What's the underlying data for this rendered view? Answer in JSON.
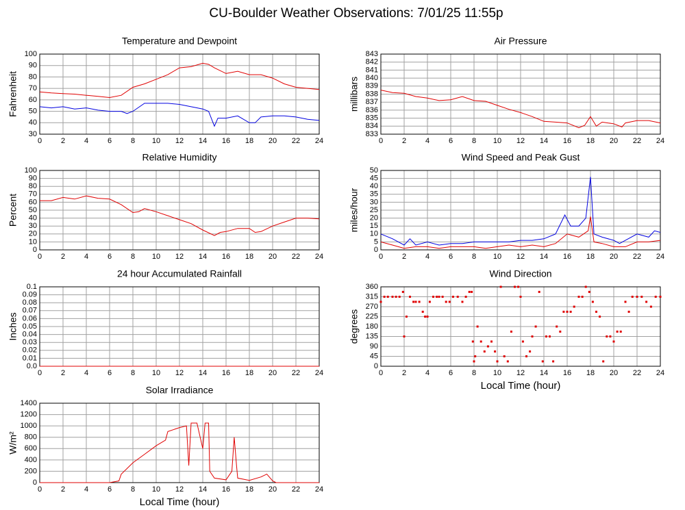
{
  "title": "CU-Boulder Weather Observations: 7/01/25 11:55p",
  "chart_data": [
    {
      "type": "line",
      "title": "Temperature and Dewpoint",
      "ylabel": "Fahrenheit",
      "xlim": [
        0,
        24
      ],
      "xticks": [
        0,
        2,
        4,
        6,
        8,
        10,
        12,
        14,
        16,
        18,
        20,
        22,
        24
      ],
      "ylim": [
        30,
        100
      ],
      "yticks": [
        30,
        40,
        50,
        60,
        70,
        80,
        90,
        100
      ],
      "grid": true,
      "series": [
        {
          "color": "#e00000",
          "x": [
            0,
            1,
            2,
            3,
            4,
            5,
            6,
            7,
            8,
            9,
            10,
            11,
            12,
            13,
            14,
            14.5,
            15,
            16,
            17,
            18,
            19,
            20,
            21,
            22,
            23,
            24
          ],
          "values": [
            67,
            66,
            65.5,
            65,
            64,
            63,
            62,
            64,
            71,
            74,
            78,
            82,
            88,
            89,
            92,
            91,
            88,
            83,
            85,
            82,
            82,
            79,
            74,
            71,
            70,
            69
          ]
        },
        {
          "color": "#0000e0",
          "x": [
            0,
            1,
            2,
            3,
            4,
            5,
            6,
            7,
            7.5,
            8,
            9,
            10,
            11,
            12,
            13,
            14,
            14.5,
            15,
            15.3,
            16,
            17,
            18,
            18.5,
            19,
            20,
            21,
            22,
            23,
            24
          ],
          "values": [
            54,
            53,
            54,
            52,
            53,
            51,
            50,
            50,
            48,
            50,
            57,
            57,
            57,
            56,
            54,
            52,
            50,
            37,
            44,
            44,
            46,
            40,
            40,
            45,
            46,
            46,
            45,
            43,
            42
          ]
        }
      ]
    },
    {
      "type": "line",
      "title": "Air Pressure",
      "ylabel": "millibars",
      "xlim": [
        0,
        24
      ],
      "xticks": [
        0,
        2,
        4,
        6,
        8,
        10,
        12,
        14,
        16,
        18,
        20,
        22,
        24
      ],
      "ylim": [
        833,
        843
      ],
      "yticks": [
        833,
        834,
        835,
        836,
        837,
        838,
        839,
        840,
        841,
        842,
        843
      ],
      "grid": true,
      "series": [
        {
          "color": "#e00000",
          "x": [
            0,
            1,
            2,
            3,
            4,
            5,
            6,
            7,
            8,
            9,
            10,
            11,
            12,
            13,
            14,
            15,
            16,
            17,
            17.5,
            18,
            18.5,
            19,
            20,
            20.7,
            21,
            22,
            23,
            24
          ],
          "values": [
            838.5,
            838.2,
            838.1,
            837.7,
            837.5,
            837.2,
            837.3,
            837.7,
            837.2,
            837.1,
            836.6,
            836.1,
            835.7,
            835.2,
            834.6,
            834.5,
            834.4,
            833.8,
            834.1,
            835.2,
            834,
            834.5,
            834.3,
            833.9,
            834.4,
            834.7,
            834.7,
            834.4
          ]
        }
      ]
    },
    {
      "type": "line",
      "title": "Relative Humidity",
      "ylabel": "Percent",
      "xlim": [
        0,
        24
      ],
      "xticks": [
        0,
        2,
        4,
        6,
        8,
        10,
        12,
        14,
        16,
        18,
        20,
        22,
        24
      ],
      "ylim": [
        0,
        100
      ],
      "yticks": [
        0,
        10,
        20,
        30,
        40,
        50,
        60,
        70,
        80,
        90,
        100
      ],
      "grid": true,
      "series": [
        {
          "color": "#e00000",
          "x": [
            0,
            1,
            2,
            3,
            4,
            5,
            6,
            7,
            8,
            8.5,
            9,
            10,
            11,
            12,
            13,
            14,
            15,
            15.5,
            16,
            17,
            18,
            18.5,
            19,
            20,
            21,
            22,
            23,
            24
          ],
          "values": [
            62,
            62,
            66,
            64,
            68,
            65,
            64,
            57,
            47,
            48,
            52,
            48,
            43,
            38,
            33,
            25,
            18,
            22,
            23,
            27,
            27,
            22,
            23,
            30,
            35,
            40,
            40,
            39
          ]
        }
      ]
    },
    {
      "type": "line",
      "title": "Wind Speed and Peak Gust",
      "ylabel": "miles/hour",
      "xlim": [
        0,
        24
      ],
      "xticks": [
        0,
        2,
        4,
        6,
        8,
        10,
        12,
        14,
        16,
        18,
        20,
        22,
        24
      ],
      "ylim": [
        0,
        50
      ],
      "yticks": [
        0,
        5,
        10,
        15,
        20,
        25,
        30,
        35,
        40,
        45,
        50
      ],
      "grid": true,
      "series": [
        {
          "color": "#0000e0",
          "x": [
            0,
            1,
            2,
            2.5,
            3,
            4,
            5,
            6,
            7,
            8,
            9,
            10,
            11,
            12,
            13,
            14,
            15,
            15.8,
            16.3,
            17,
            17.6,
            18,
            18.3,
            19,
            20,
            20.5,
            21,
            22,
            23,
            23.5,
            24
          ],
          "values": [
            10,
            7,
            3,
            7,
            3,
            5,
            3,
            4,
            4,
            5,
            5,
            5,
            5,
            6,
            6,
            7,
            10,
            22,
            15,
            15,
            20,
            46,
            10,
            8,
            6,
            4,
            6,
            10,
            8,
            12,
            11
          ]
        },
        {
          "color": "#e00000",
          "x": [
            0,
            1,
            2,
            3,
            4,
            5,
            6,
            7,
            8,
            9,
            10,
            11,
            12,
            13,
            14,
            15,
            16,
            17,
            17.8,
            18,
            18.3,
            19,
            20,
            21,
            22,
            23,
            24
          ],
          "values": [
            5,
            3,
            1,
            2,
            2,
            1,
            2,
            2,
            2,
            1,
            2,
            3,
            2,
            3,
            2,
            4,
            10,
            8,
            12,
            21,
            5,
            4,
            2,
            2,
            5,
            5,
            6
          ]
        }
      ]
    },
    {
      "type": "line",
      "title": "24 hour Accumulated Rainfall",
      "ylabel": "Inches",
      "xlim": [
        0,
        24
      ],
      "xticks": [
        0,
        2,
        4,
        6,
        8,
        10,
        12,
        14,
        16,
        18,
        20,
        22,
        24
      ],
      "ylim": [
        0,
        0.1
      ],
      "yticks": [
        {
          "value": 0,
          "label": "0.0"
        },
        0.01,
        0.02,
        0.03,
        0.04,
        0.05,
        0.06,
        0.07,
        0.08,
        0.09,
        0.1
      ],
      "grid": true,
      "series": [
        {
          "color": "#e00000",
          "x": [
            0,
            24
          ],
          "values": [
            0,
            0
          ]
        }
      ]
    },
    {
      "type": "scatter",
      "title": "Wind Direction",
      "ylabel": "degrees",
      "xlabel": "Local Time (hour)",
      "xlim": [
        0,
        24
      ],
      "xticks": [
        0,
        2,
        4,
        6,
        8,
        10,
        12,
        14,
        16,
        18,
        20,
        22,
        24
      ],
      "ylim": [
        0,
        360
      ],
      "yticks": [
        0,
        45,
        90,
        135,
        180,
        225,
        270,
        315,
        360
      ],
      "grid": true,
      "series": [
        {
          "color": "#e00000",
          "x": [
            0,
            0.3,
            0.6,
            1,
            1.3,
            1.6,
            1.9,
            2,
            2.2,
            2.5,
            2.8,
            3,
            3.3,
            3.6,
            3.8,
            4,
            4.2,
            4.5,
            4.8,
            5,
            5.3,
            5.6,
            5.9,
            6.2,
            6.6,
            7,
            7.3,
            7.6,
            7.8,
            7.9,
            8,
            8.1,
            8.3,
            8.6,
            8.9,
            9.2,
            9.5,
            9.8,
            10,
            10.3,
            10.6,
            10.9,
            11.2,
            11.5,
            11.8,
            12,
            12.2,
            12.5,
            12.8,
            13,
            13.3,
            13.6,
            13.9,
            14.2,
            14.5,
            14.8,
            15.1,
            15.4,
            15.7,
            16,
            16.3,
            16.6,
            17,
            17.3,
            17.6,
            17.9,
            18.2,
            18.5,
            18.8,
            19.1,
            19.4,
            19.7,
            20,
            20.3,
            20.6,
            21,
            21.3,
            21.6,
            22,
            22.4,
            22.8,
            23.2,
            23.6,
            24
          ],
          "values": [
            292,
            315,
            315,
            315,
            315,
            315,
            337,
            135,
            225,
            315,
            292,
            292,
            292,
            247,
            225,
            225,
            292,
            315,
            315,
            315,
            315,
            292,
            292,
            315,
            315,
            292,
            315,
            337,
            337,
            112,
            22,
            45,
            180,
            112,
            67,
            90,
            112,
            67,
            22,
            360,
            45,
            22,
            157,
            360,
            360,
            315,
            112,
            45,
            67,
            135,
            180,
            337,
            22,
            135,
            135,
            22,
            180,
            157,
            247,
            247,
            247,
            270,
            315,
            315,
            360,
            337,
            292,
            247,
            225,
            22,
            135,
            135,
            112,
            157,
            157,
            292,
            247,
            315,
            315,
            315,
            292,
            270,
            315,
            315
          ]
        }
      ]
    },
    {
      "type": "line",
      "title": "Solar Irradiance",
      "ylabel": "W/m²",
      "xlabel": "Local Time (hour)",
      "xlim": [
        0,
        24
      ],
      "xticks": [
        0,
        2,
        4,
        6,
        8,
        10,
        12,
        14,
        16,
        18,
        20,
        22,
        24
      ],
      "ylim": [
        0,
        1400
      ],
      "yticks": [
        0,
        200,
        400,
        600,
        800,
        1000,
        1200,
        1400
      ],
      "grid": true,
      "series": [
        {
          "color": "#e00000",
          "x": [
            0,
            6,
            6.8,
            7,
            8,
            9,
            10,
            10.8,
            11,
            12,
            12.6,
            12.8,
            13,
            13.5,
            14,
            14.2,
            14.5,
            14.6,
            15,
            16,
            16.5,
            16.7,
            16.9,
            17,
            18,
            19,
            19.5,
            20,
            20.3,
            24
          ],
          "values": [
            0,
            0,
            30,
            150,
            350,
            500,
            650,
            750,
            900,
            970,
            1000,
            300,
            1050,
            1050,
            600,
            1050,
            1050,
            200,
            80,
            50,
            200,
            800,
            300,
            80,
            40,
            100,
            150,
            30,
            0,
            0
          ]
        }
      ]
    }
  ]
}
